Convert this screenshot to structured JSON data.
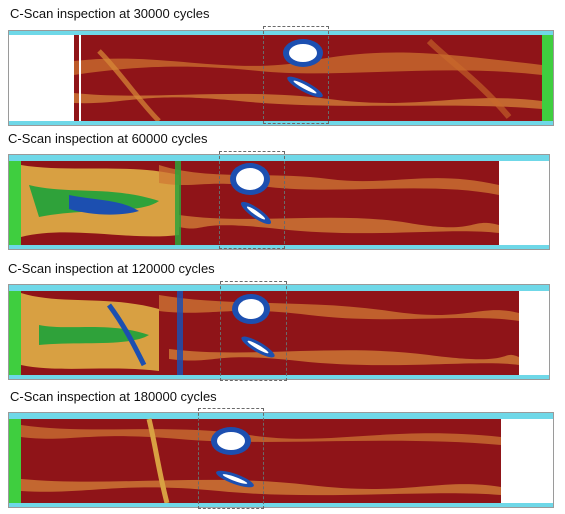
{
  "figure": {
    "captions": [
      "C-Scan inspection at 30000 cycles",
      "C-Scan inspection at 60000 cycles",
      "C-Scan inspection at 120000 cycles",
      "C-Scan inspection at 180000 cycles"
    ]
  },
  "scans": [
    {
      "cycles": 30000,
      "blank_region": "left",
      "colors": {
        "background": "#8f1418",
        "damage_core": "#ffffff",
        "damage_ring": "#1c4fb0",
        "toolbar": "#6fd8e8",
        "side_ruler": "#3fce3f"
      }
    },
    {
      "cycles": 60000,
      "blank_region": "right",
      "colors": {
        "background": "#8f1418",
        "damage_core": "#ffffff",
        "damage_ring": "#1c4fb0",
        "toolbar": "#6fd8e8",
        "side_ruler": "#3fce3f"
      }
    },
    {
      "cycles": 120000,
      "blank_region": "right",
      "colors": {
        "background": "#8f1418",
        "damage_core": "#ffffff",
        "damage_ring": "#1c4fb0",
        "toolbar": "#6fd8e8",
        "side_ruler": "#3fce3f"
      }
    },
    {
      "cycles": 180000,
      "blank_region": "right",
      "colors": {
        "background": "#8f1418",
        "damage_core": "#ffffff",
        "damage_ring": "#1c4fb0",
        "toolbar": "#6fd8e8",
        "side_ruler": "#3fce3f"
      }
    }
  ]
}
